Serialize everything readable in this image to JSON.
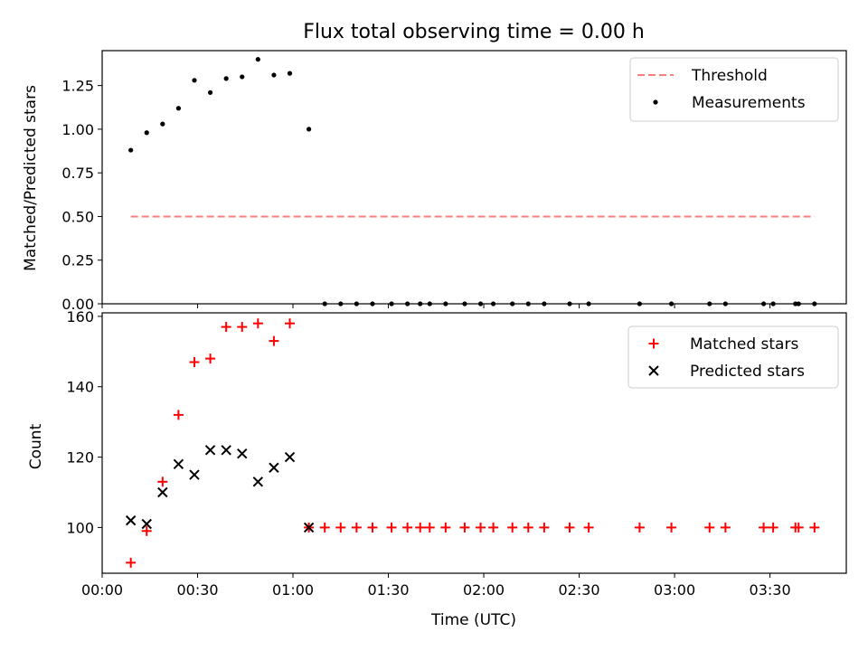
{
  "chart_data": [
    {
      "type": "scatter",
      "title": "Flux total observing time = 0.00 h",
      "xlabel": "",
      "ylabel": "Matched/Predicted stars",
      "ylim": [
        0,
        1.45
      ],
      "xlim": [
        "00:00",
        "03:54"
      ],
      "yticks": [
        0.0,
        0.25,
        0.5,
        0.75,
        1.0,
        1.25
      ],
      "yticklabels": [
        "0.00",
        "0.25",
        "0.50",
        "0.75",
        "1.00",
        "1.25"
      ],
      "legend": "top-right",
      "series": [
        {
          "name": "Threshold",
          "kind": "line",
          "style": "dashed",
          "color": "#ff7f7f",
          "x": [
            "00:09",
            "03:44"
          ],
          "y": [
            0.5,
            0.5
          ]
        },
        {
          "name": "Measurements",
          "kind": "scatter",
          "marker": "dot",
          "color": "#000000",
          "x": [
            "00:09",
            "00:14",
            "00:19",
            "00:24",
            "00:29",
            "00:34",
            "00:39",
            "00:44",
            "00:49",
            "00:54",
            "00:59",
            "01:05",
            "01:10",
            "01:15",
            "01:20",
            "01:25",
            "01:31",
            "01:36",
            "01:40",
            "01:43",
            "01:48",
            "01:54",
            "01:59",
            "02:03",
            "02:09",
            "02:14",
            "02:19",
            "02:27",
            "02:33",
            "02:49",
            "02:59",
            "03:11",
            "03:16",
            "03:28",
            "03:31",
            "03:38",
            "03:39",
            "03:44"
          ],
          "y": [
            0.88,
            0.98,
            1.03,
            1.12,
            1.28,
            1.21,
            1.29,
            1.3,
            1.4,
            1.31,
            1.32,
            1.0,
            0,
            0,
            0,
            0,
            0,
            0,
            0,
            0,
            0,
            0,
            0,
            0,
            0,
            0,
            0,
            0,
            0,
            0,
            0,
            0,
            0,
            0,
            0,
            0,
            0,
            0
          ]
        }
      ]
    },
    {
      "type": "scatter",
      "title": "",
      "xlabel": "Time (UTC)",
      "ylabel": "Count",
      "ylim": [
        87,
        161
      ],
      "xlim": [
        "00:00",
        "03:54"
      ],
      "yticks": [
        100,
        120,
        140,
        160
      ],
      "yticklabels": [
        "100",
        "120",
        "140",
        "160"
      ],
      "xticks": [
        "00:00",
        "00:30",
        "01:00",
        "01:30",
        "02:00",
        "02:30",
        "03:00",
        "03:30"
      ],
      "legend": "top-right",
      "series": [
        {
          "name": "Matched stars",
          "marker": "plus",
          "color": "#ff0000",
          "x": [
            "00:09",
            "00:14",
            "00:19",
            "00:24",
            "00:29",
            "00:34",
            "00:39",
            "00:44",
            "00:49",
            "00:54",
            "00:59",
            "01:05",
            "01:10",
            "01:15",
            "01:20",
            "01:25",
            "01:31",
            "01:36",
            "01:40",
            "01:43",
            "01:48",
            "01:54",
            "01:59",
            "02:03",
            "02:09",
            "02:14",
            "02:19",
            "02:27",
            "02:33",
            "02:49",
            "02:59",
            "03:11",
            "03:16",
            "03:28",
            "03:31",
            "03:38",
            "03:39",
            "03:44"
          ],
          "y": [
            90,
            99,
            113,
            132,
            147,
            148,
            157,
            157,
            158,
            153,
            158,
            100,
            100,
            100,
            100,
            100,
            100,
            100,
            100,
            100,
            100,
            100,
            100,
            100,
            100,
            100,
            100,
            100,
            100,
            100,
            100,
            100,
            100,
            100,
            100,
            100,
            100,
            100
          ]
        },
        {
          "name": "Predicted stars",
          "marker": "x",
          "color": "#000000",
          "x": [
            "00:09",
            "00:14",
            "00:19",
            "00:24",
            "00:29",
            "00:34",
            "00:39",
            "00:44",
            "00:49",
            "00:54",
            "00:59",
            "01:05"
          ],
          "y": [
            102,
            101,
            110,
            118,
            115,
            122,
            122,
            121,
            113,
            117,
            120,
            100
          ]
        }
      ]
    }
  ]
}
